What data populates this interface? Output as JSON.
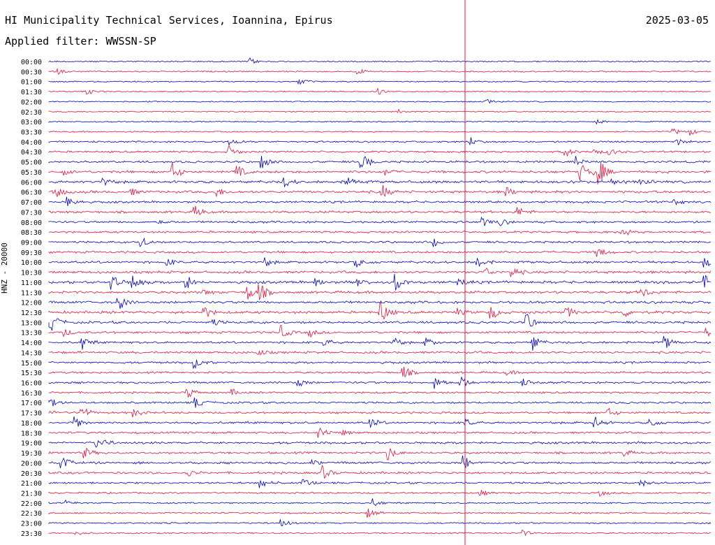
{
  "header": {
    "title": "HI Municipality Technical Services, Ioannina, Epirus",
    "date": "2025-03-05",
    "filter": "Applied filter: WWSSN-SP"
  },
  "axis": {
    "ylabel": "HNZ - 20000"
  },
  "colors": {
    "trace_a": "#0000cc",
    "trace_b": "#e8103a",
    "marker": "#e8103a",
    "background": "#ffffff"
  },
  "chart_data": {
    "type": "line",
    "title": "HI Municipality Technical Services, Ioannina, Epirus",
    "ylabel": "HNZ - 20000",
    "row_labels": [
      "00:00",
      "00:30",
      "01:00",
      "01:30",
      "02:00",
      "02:30",
      "03:00",
      "03:30",
      "04:00",
      "04:30",
      "05:00",
      "05:30",
      "06:00",
      "06:30",
      "07:00",
      "07:30",
      "08:00",
      "08:30",
      "09:00",
      "09:30",
      "10:00",
      "10:30",
      "11:00",
      "11:30",
      "12:00",
      "12:30",
      "13:00",
      "13:30",
      "14:00",
      "14:30",
      "15:00",
      "15:30",
      "16:00",
      "16:30",
      "17:00",
      "17:30",
      "18:00",
      "18:30",
      "19:00",
      "19:30",
      "20:00",
      "20:30",
      "21:00",
      "21:30",
      "22:00",
      "22:30",
      "23:00",
      "23:30"
    ],
    "series": [
      {
        "color": "#0000cc",
        "rows": "even"
      },
      {
        "color": "#e8103a",
        "rows": "odd"
      }
    ],
    "activity": [
      0.15,
      0.2,
      0.12,
      0.12,
      0.1,
      0.1,
      0.12,
      0.18,
      0.35,
      0.45,
      0.5,
      0.7,
      0.75,
      0.7,
      0.55,
      0.6,
      0.55,
      0.5,
      0.5,
      0.55,
      0.6,
      0.7,
      0.75,
      0.7,
      0.7,
      0.75,
      0.65,
      0.6,
      0.55,
      0.6,
      0.5,
      0.45,
      0.5,
      0.45,
      0.45,
      0.5,
      0.55,
      0.5,
      0.6,
      0.55,
      0.6,
      0.55,
      0.45,
      0.35,
      0.25,
      0.3,
      0.25,
      0.2
    ],
    "marker_time": "15:00"
  }
}
